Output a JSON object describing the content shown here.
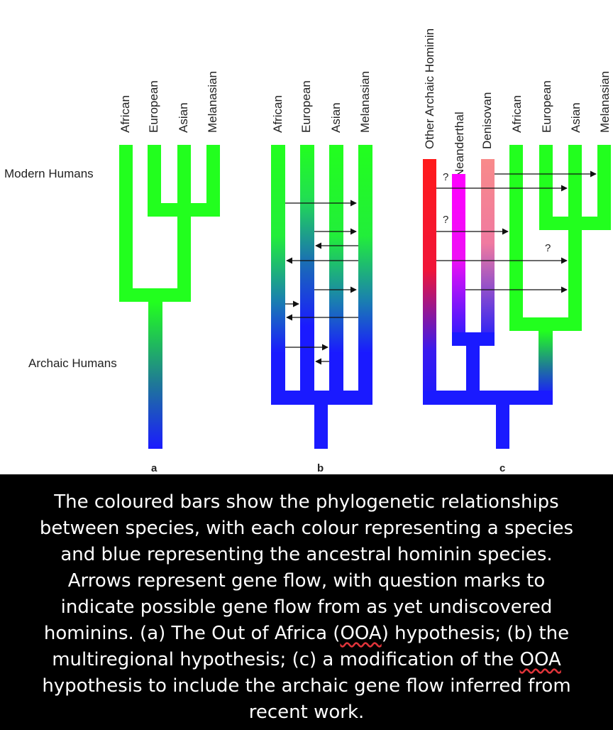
{
  "diagram": {
    "left_labels": {
      "modern_humans": "Modern Humans",
      "archaic_humans": "Archaic Humans"
    },
    "panel_a": {
      "letter": "a",
      "columns": [
        "African",
        "European",
        "Asian",
        "Melanasian"
      ]
    },
    "panel_b": {
      "letter": "b",
      "columns": [
        "African",
        "European",
        "Asian",
        "Melanasian"
      ]
    },
    "panel_c": {
      "letter": "c",
      "columns": [
        "Other Archaic Hominin",
        "Neanderthal",
        "Denisovan",
        "African",
        "European",
        "Asian",
        "Melanasian"
      ],
      "question_marks": [
        "?",
        "?",
        "?"
      ]
    },
    "colors": {
      "modern": "#22ff1e",
      "ancestral": "#1a1aff",
      "other_archaic": "#ff1a1a",
      "neanderthal": "#ff00ff",
      "denisovan": "#f88a8a",
      "arrow": "#111111"
    }
  },
  "caption": {
    "lines": [
      "The coloured bars show the phylogenetic relationships",
      "between species, with each colour representing a species",
      "and blue representing the ancestral hominin species.",
      "Arrows represent gene flow, with question marks to",
      "indicate possible gene flow from as yet undiscovered",
      "hominins. (a) The Out of Africa (",
      "OOA",
      ") hypothesis; (b) the",
      "multiregional hypothesis; (c) a modification of the ",
      "OOA",
      "hypothesis to include the archaic gene flow inferred from",
      "recent work."
    ]
  }
}
